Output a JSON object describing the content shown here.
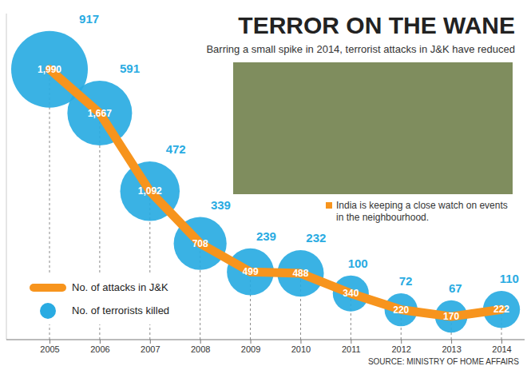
{
  "chart_data": {
    "type": "line",
    "title": "TERROR ON THE WANE",
    "subtitle": "Barring a small spike in 2014, terrorist attacks in J&K have reduced",
    "annotations": [
      "India is keeping a close watch on events in the neighbourhood."
    ],
    "source": "SOURCE: MINISTRY OF HOME AFFAIRS",
    "categories": [
      "2005",
      "2006",
      "2007",
      "2008",
      "2009",
      "2010",
      "2011",
      "2012",
      "2013",
      "2014"
    ],
    "series": [
      {
        "name": "No. of attacks in J&K",
        "type": "line",
        "color": "#f7941d",
        "values": [
          1990,
          1667,
          1092,
          708,
          499,
          488,
          340,
          220,
          170,
          222
        ],
        "value_labels": [
          "1,990",
          "1,667",
          "1,092",
          "708",
          "499",
          "488",
          "340",
          "220",
          "170",
          "222"
        ]
      },
      {
        "name": "No. of terrorists killed",
        "type": "bubble",
        "color": "#29abe2",
        "values": [
          917,
          591,
          472,
          339,
          239,
          232,
          100,
          72,
          67,
          110
        ]
      }
    ],
    "ylim": [
      0,
      2400
    ],
    "tick_labels": "x",
    "grid": true,
    "data_labels": true,
    "legend": "bottom-left"
  }
}
